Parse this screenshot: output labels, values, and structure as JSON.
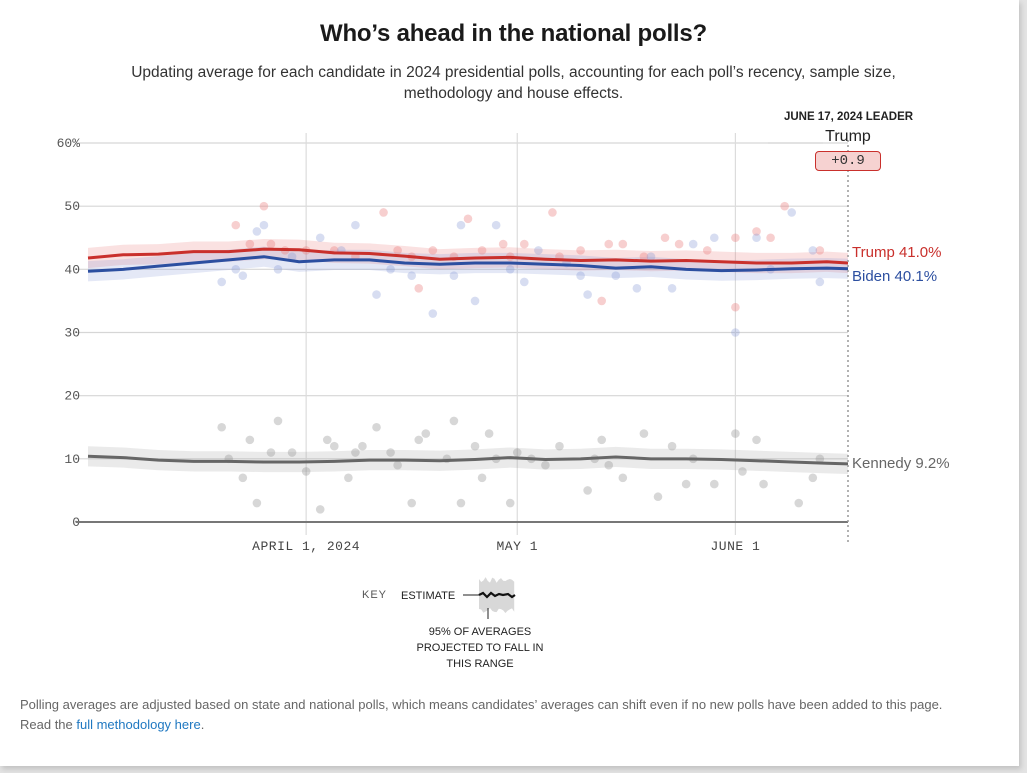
{
  "header": {
    "title": "Who’s ahead in the national polls?",
    "subtitle": "Updating average for each candidate in 2024 presidential polls, accounting for each poll’s recency, sample size, methodology and house effects."
  },
  "leader": {
    "heading": "JUNE 17, 2024 LEADER",
    "name": "Trump",
    "margin": "+0.9"
  },
  "colors": {
    "trump": "#c9302c",
    "biden": "#2c4fa0",
    "kennedy": "#666666",
    "link": "#1f78c1"
  },
  "key": {
    "label": "KEY",
    "estimate": "ESTIMATE",
    "range_note_1": "95% OF AVERAGES",
    "range_note_2": "PROJECTED TO FALL IN",
    "range_note_3": "THIS RANGE"
  },
  "footnote": {
    "text": "Polling averages are adjusted based on state and national polls, which means candidates’ averages can shift even if no new polls have been added to this page.",
    "read_prefix": "Read the ",
    "link_text": "full methodology here",
    "suffix": "."
  },
  "chart_data": {
    "type": "line",
    "title": "Who’s ahead in the national polls?",
    "xlabel": "",
    "ylabel": "",
    "x_range_days": [
      0,
      108
    ],
    "x_start_date": "2024-03-01",
    "x_end_date": "2024-06-17",
    "ylim": [
      0,
      60
    ],
    "y_ticks": [
      0,
      10,
      20,
      30,
      40,
      50,
      60
    ],
    "y_tick_labels": [
      "0",
      "10",
      "20",
      "30",
      "40",
      "50",
      "60%"
    ],
    "x_ticks": [
      {
        "day": 31,
        "label": "APRIL 1, 2024"
      },
      {
        "day": 61,
        "label": "MAY 1"
      },
      {
        "day": 92,
        "label": "JUNE 1"
      }
    ],
    "grid": true,
    "series": [
      {
        "name": "Trump",
        "end_label": "Trump 41.0%",
        "final_value": 41.0,
        "band_halfwidth": 1.6,
        "x": [
          0,
          5,
          10,
          15,
          20,
          25,
          30,
          35,
          40,
          45,
          50,
          55,
          60,
          65,
          70,
          75,
          80,
          85,
          90,
          95,
          100,
          105,
          108
        ],
        "values": [
          41.8,
          42.3,
          42.4,
          42.8,
          42.8,
          43.2,
          43.1,
          42.6,
          42.5,
          42.1,
          41.6,
          41.8,
          41.9,
          41.6,
          41.4,
          41.5,
          41.3,
          41.4,
          41.2,
          41.0,
          41.0,
          41.2,
          41.0
        ]
      },
      {
        "name": "Biden",
        "end_label": "Biden 40.1%",
        "final_value": 40.1,
        "band_halfwidth": 1.6,
        "x": [
          0,
          5,
          10,
          15,
          20,
          25,
          30,
          35,
          40,
          45,
          50,
          55,
          60,
          65,
          70,
          75,
          80,
          85,
          90,
          95,
          100,
          105,
          108
        ],
        "values": [
          39.7,
          40.0,
          40.5,
          41.0,
          41.5,
          42.0,
          41.2,
          41.5,
          41.5,
          41.0,
          40.8,
          41.0,
          41.0,
          40.8,
          40.6,
          40.2,
          40.4,
          40.0,
          39.8,
          39.9,
          40.1,
          40.2,
          40.1
        ]
      },
      {
        "name": "Kennedy",
        "end_label": "Kennedy 9.2%",
        "final_value": 9.2,
        "band_halfwidth": 1.6,
        "x": [
          0,
          5,
          10,
          15,
          20,
          25,
          30,
          35,
          40,
          45,
          50,
          55,
          60,
          65,
          70,
          75,
          80,
          85,
          90,
          95,
          100,
          105,
          108
        ],
        "values": [
          10.4,
          10.2,
          9.8,
          9.6,
          9.6,
          9.5,
          9.5,
          9.6,
          9.8,
          9.8,
          9.7,
          9.9,
          10.2,
          9.9,
          10.0,
          10.3,
          10.0,
          10.0,
          9.9,
          9.7,
          9.5,
          9.3,
          9.2
        ]
      }
    ],
    "polls": {
      "trump": [
        [
          21,
          47
        ],
        [
          23,
          44
        ],
        [
          25,
          50
        ],
        [
          26,
          44
        ],
        [
          28,
          43
        ],
        [
          31,
          43
        ],
        [
          35,
          43
        ],
        [
          38,
          42
        ],
        [
          42,
          49
        ],
        [
          44,
          43
        ],
        [
          46,
          42
        ],
        [
          47,
          37
        ],
        [
          49,
          43
        ],
        [
          52,
          42
        ],
        [
          54,
          48
        ],
        [
          56,
          43
        ],
        [
          59,
          44
        ],
        [
          60,
          42
        ],
        [
          62,
          44
        ],
        [
          66,
          49
        ],
        [
          67,
          42
        ],
        [
          70,
          43
        ],
        [
          73,
          35
        ],
        [
          74,
          44
        ],
        [
          76,
          44
        ],
        [
          79,
          42
        ],
        [
          82,
          45
        ],
        [
          84,
          44
        ],
        [
          88,
          43
        ],
        [
          92,
          45
        ],
        [
          92,
          34
        ],
        [
          95,
          46
        ],
        [
          97,
          45
        ],
        [
          99,
          50
        ],
        [
          104,
          43
        ]
      ],
      "biden": [
        [
          19,
          38
        ],
        [
          21,
          40
        ],
        [
          22,
          39
        ],
        [
          24,
          46
        ],
        [
          25,
          47
        ],
        [
          27,
          40
        ],
        [
          29,
          42
        ],
        [
          33,
          45
        ],
        [
          36,
          43
        ],
        [
          38,
          47
        ],
        [
          41,
          36
        ],
        [
          43,
          40
        ],
        [
          46,
          39
        ],
        [
          49,
          33
        ],
        [
          52,
          39
        ],
        [
          53,
          47
        ],
        [
          55,
          35
        ],
        [
          58,
          47
        ],
        [
          60,
          40
        ],
        [
          62,
          38
        ],
        [
          64,
          43
        ],
        [
          68,
          41
        ],
        [
          70,
          39
        ],
        [
          71,
          36
        ],
        [
          75,
          39
        ],
        [
          78,
          37
        ],
        [
          80,
          42
        ],
        [
          83,
          37
        ],
        [
          86,
          44
        ],
        [
          89,
          45
        ],
        [
          92,
          30
        ],
        [
          95,
          45
        ],
        [
          97,
          40
        ],
        [
          100,
          49
        ],
        [
          103,
          43
        ],
        [
          104,
          38
        ]
      ],
      "kennedy": [
        [
          19,
          15
        ],
        [
          20,
          10
        ],
        [
          22,
          7
        ],
        [
          23,
          13
        ],
        [
          24,
          3
        ],
        [
          26,
          11
        ],
        [
          27,
          16
        ],
        [
          29,
          11
        ],
        [
          31,
          8
        ],
        [
          33,
          2
        ],
        [
          34,
          13
        ],
        [
          35,
          12
        ],
        [
          37,
          7
        ],
        [
          38,
          11
        ],
        [
          39,
          12
        ],
        [
          41,
          15
        ],
        [
          43,
          11
        ],
        [
          44,
          9
        ],
        [
          46,
          3
        ],
        [
          47,
          13
        ],
        [
          48,
          14
        ],
        [
          51,
          10
        ],
        [
          52,
          16
        ],
        [
          53,
          3
        ],
        [
          55,
          12
        ],
        [
          56,
          7
        ],
        [
          57,
          14
        ],
        [
          58,
          10
        ],
        [
          60,
          3
        ],
        [
          61,
          11
        ],
        [
          63,
          10
        ],
        [
          65,
          9
        ],
        [
          67,
          12
        ],
        [
          71,
          5
        ],
        [
          72,
          10
        ],
        [
          73,
          13
        ],
        [
          74,
          9
        ],
        [
          76,
          7
        ],
        [
          79,
          14
        ],
        [
          81,
          4
        ],
        [
          83,
          12
        ],
        [
          85,
          6
        ],
        [
          86,
          10
        ],
        [
          89,
          6
        ],
        [
          92,
          14
        ],
        [
          93,
          8
        ],
        [
          95,
          13
        ],
        [
          96,
          6
        ],
        [
          101,
          3
        ],
        [
          103,
          7
        ],
        [
          104,
          10
        ]
      ]
    }
  }
}
